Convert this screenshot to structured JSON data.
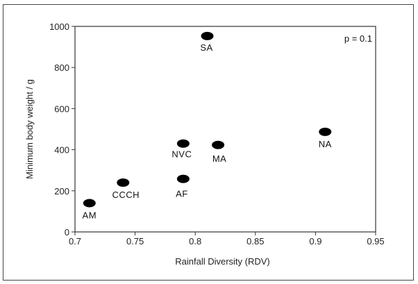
{
  "chart_data": {
    "type": "scatter",
    "title": "",
    "xlabel": "Rainfall Diversity (RDV)",
    "ylabel": "Minimum body weight / g",
    "xlim": [
      0.7,
      0.95
    ],
    "ylim": [
      0,
      1000
    ],
    "xticks": [
      "0.7",
      "0.75",
      "0.8",
      "0.85",
      "0.9",
      "0.95"
    ],
    "yticks": [
      "0",
      "200",
      "400",
      "600",
      "800",
      "1000"
    ],
    "grid": false,
    "legend": "none",
    "annotation": "p = 0.1",
    "marker_color": "#000000",
    "points": [
      {
        "label": "AM",
        "x": 0.712,
        "y": 140
      },
      {
        "label": "CCCH",
        "x": 0.74,
        "y": 240
      },
      {
        "label": "AF",
        "x": 0.79,
        "y": 258
      },
      {
        "label": "NVC",
        "x": 0.79,
        "y": 430
      },
      {
        "label": "MA",
        "x": 0.819,
        "y": 423
      },
      {
        "label": "SA",
        "x": 0.81,
        "y": 953
      },
      {
        "label": "NA",
        "x": 0.908,
        "y": 487
      }
    ]
  }
}
